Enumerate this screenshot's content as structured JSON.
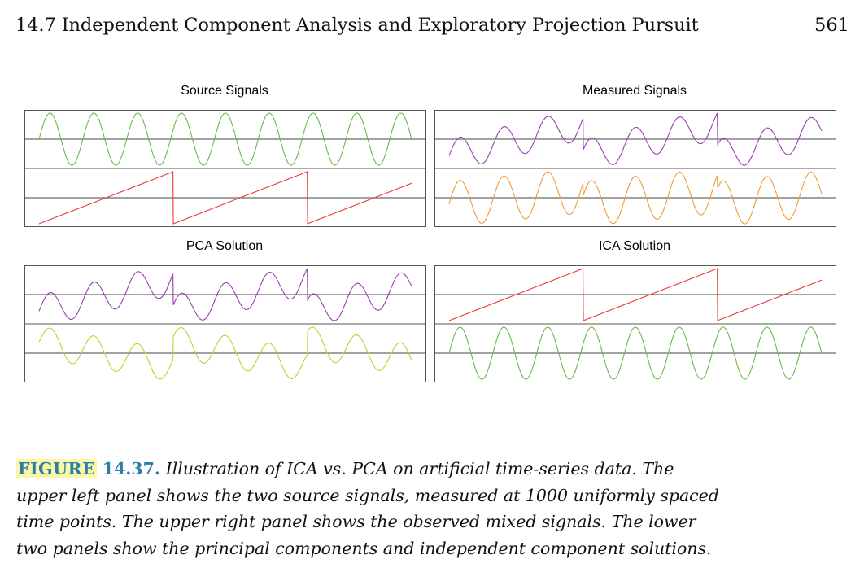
{
  "header": {
    "title": "14.7 Independent Component Analysis and Exploratory Projection Pursuit",
    "page_number": "561"
  },
  "chart_data": [
    {
      "type": "line",
      "title": "Source Signals",
      "rows": [
        {
          "color": "#66bb4a",
          "shape": "sine",
          "cycles": 8.5,
          "phase": 0.0,
          "amplitude": 1.0
        },
        {
          "color": "#e83a3a",
          "shape": "sawtooth",
          "period": 0.36,
          "offset": 0.0,
          "amplitude": 1.0
        }
      ]
    },
    {
      "type": "line",
      "title": "Measured Signals",
      "rows": [
        {
          "color": "#9a3db0",
          "shape": "mix",
          "sine_weight": 0.55,
          "saw_weight": 0.55,
          "cycles": 8.5,
          "period": 0.36,
          "amplitude": 1.0
        },
        {
          "color": "#f39a36",
          "shape": "mix",
          "sine_weight": 0.85,
          "saw_weight": 0.25,
          "cycles": 8.5,
          "period": 0.36,
          "amplitude": 1.0
        }
      ]
    },
    {
      "type": "line",
      "title": "PCA Solution",
      "rows": [
        {
          "color": "#9a3db0",
          "shape": "mix",
          "sine_weight": 0.55,
          "saw_weight": 0.55,
          "cycles": 8.5,
          "period": 0.36,
          "amplitude": 1.0
        },
        {
          "color": "#b8d42c",
          "shape": "mix",
          "sine_weight": 0.6,
          "saw_weight": -0.45,
          "cycles": 8.5,
          "period": 0.36,
          "amplitude": 1.0
        }
      ]
    },
    {
      "type": "line",
      "title": "ICA Solution",
      "rows": [
        {
          "color": "#e83a3a",
          "shape": "sawtooth",
          "period": 0.36,
          "offset": 0.0,
          "amplitude": 1.0
        },
        {
          "color": "#66bb4a",
          "shape": "sine",
          "cycles": 8.5,
          "phase": 0.0,
          "amplitude": 1.0
        }
      ]
    }
  ],
  "caption": {
    "label": "FIGURE",
    "number": "14.37.",
    "line1": "Illustration of ICA vs. PCA on artificial time-series data. The",
    "line2": "upper left panel shows the two source signals, measured at 1000 uniformly spaced",
    "line3": "time points. The upper right panel shows the observed mixed signals. The lower",
    "line4": "two panels show the principal components and independent component solutions."
  }
}
